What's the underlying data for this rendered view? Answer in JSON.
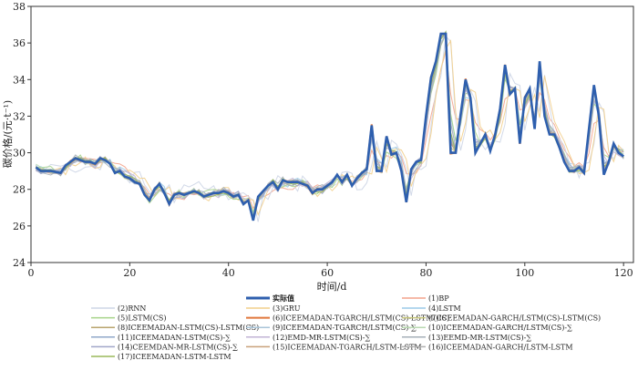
{
  "chart_data": {
    "type": "line",
    "title": "",
    "xlabel": "时间/d",
    "ylabel": "碳价格/(元·t⁻¹)",
    "xlim": [
      0,
      122
    ],
    "ylim": [
      24,
      38
    ],
    "xticks": [
      0,
      20,
      40,
      60,
      80,
      100,
      120
    ],
    "yticks": [
      24,
      26,
      28,
      30,
      32,
      34,
      36,
      38
    ],
    "grid": false,
    "legend_position": "bottom",
    "actual": {
      "name": "实际值",
      "color": "#2e5fae",
      "points": [
        [
          1,
          29.2
        ],
        [
          2,
          29.0
        ],
        [
          4,
          29.0
        ],
        [
          6,
          28.9
        ],
        [
          7,
          29.3
        ],
        [
          8,
          29.5
        ],
        [
          9,
          29.7
        ],
        [
          10,
          29.6
        ],
        [
          11,
          29.5
        ],
        [
          12,
          29.5
        ],
        [
          13,
          29.4
        ],
        [
          14,
          29.7
        ],
        [
          15,
          29.6
        ],
        [
          16,
          29.4
        ],
        [
          17,
          28.9
        ],
        [
          18,
          29.0
        ],
        [
          19,
          28.7
        ],
        [
          20,
          28.6
        ],
        [
          21,
          28.4
        ],
        [
          22,
          28.3
        ],
        [
          23,
          27.7
        ],
        [
          24,
          27.4
        ],
        [
          25,
          28.0
        ],
        [
          26,
          28.3
        ],
        [
          27,
          27.8
        ],
        [
          28,
          27.2
        ],
        [
          29,
          27.7
        ],
        [
          30,
          27.8
        ],
        [
          31,
          27.7
        ],
        [
          32,
          27.8
        ],
        [
          33,
          27.9
        ],
        [
          34,
          27.8
        ],
        [
          35,
          27.6
        ],
        [
          36,
          27.7
        ],
        [
          37,
          27.8
        ],
        [
          38,
          27.8
        ],
        [
          39,
          27.9
        ],
        [
          40,
          27.8
        ],
        [
          41,
          27.6
        ],
        [
          42,
          27.7
        ],
        [
          43,
          27.2
        ],
        [
          44,
          27.4
        ],
        [
          45,
          26.3
        ],
        [
          46,
          27.6
        ],
        [
          47,
          27.9
        ],
        [
          48,
          28.2
        ],
        [
          49,
          28.4
        ],
        [
          50,
          28.0
        ],
        [
          51,
          28.5
        ],
        [
          52,
          28.4
        ],
        [
          53,
          28.4
        ],
        [
          54,
          28.4
        ],
        [
          55,
          28.3
        ],
        [
          56,
          28.2
        ],
        [
          57,
          27.8
        ],
        [
          58,
          28.0
        ],
        [
          59,
          28.0
        ],
        [
          60,
          28.2
        ],
        [
          61,
          28.4
        ],
        [
          62,
          28.8
        ],
        [
          63,
          28.4
        ],
        [
          64,
          28.8
        ],
        [
          65,
          28.2
        ],
        [
          66,
          28.6
        ],
        [
          67,
          28.9
        ],
        [
          68,
          29.1
        ],
        [
          69,
          31.5
        ],
        [
          70,
          29.0
        ],
        [
          71,
          29.0
        ],
        [
          72,
          30.9
        ],
        [
          73,
          29.9
        ],
        [
          74,
          30.0
        ],
        [
          75,
          29.0
        ],
        [
          76,
          27.3
        ],
        [
          77,
          29.1
        ],
        [
          78,
          29.5
        ],
        [
          79,
          29.6
        ],
        [
          80,
          32.0
        ],
        [
          81,
          34.1
        ],
        [
          82,
          35.0
        ],
        [
          83,
          36.5
        ],
        [
          84,
          36.5
        ],
        [
          85,
          30.0
        ],
        [
          86,
          30.0
        ],
        [
          87,
          32.1
        ],
        [
          88,
          34.0
        ],
        [
          89,
          33.0
        ],
        [
          90,
          30.0
        ],
        [
          91,
          30.5
        ],
        [
          92,
          31.0
        ],
        [
          93,
          30.1
        ],
        [
          94,
          31.0
        ],
        [
          95,
          32.4
        ],
        [
          96,
          34.8
        ],
        [
          97,
          33.2
        ],
        [
          98,
          33.5
        ],
        [
          99,
          30.5
        ],
        [
          100,
          33.0
        ],
        [
          101,
          33.5
        ],
        [
          102,
          31.3
        ],
        [
          103,
          35.0
        ],
        [
          104,
          32.0
        ],
        [
          105,
          31.0
        ],
        [
          106,
          31.0
        ],
        [
          107,
          30.3
        ],
        [
          108,
          29.5
        ],
        [
          109,
          29.0
        ],
        [
          110,
          29.0
        ],
        [
          111,
          29.2
        ],
        [
          112,
          28.9
        ],
        [
          113,
          31.3
        ],
        [
          114,
          33.7
        ],
        [
          115,
          32.0
        ],
        [
          116,
          28.8
        ],
        [
          117,
          29.5
        ],
        [
          118,
          30.5
        ],
        [
          119,
          30.0
        ],
        [
          120,
          29.8
        ]
      ]
    },
    "series": [
      {
        "name": "(1)BP",
        "color": "#f4a48c",
        "style": "solid"
      },
      {
        "name": "(2)RNN",
        "color": "#cdd5e6",
        "style": "solid"
      },
      {
        "name": "(3)GRU",
        "color": "#f2cf8c",
        "style": "solid"
      },
      {
        "name": "(4)LSTM",
        "color": "#9ccae8",
        "style": "solid"
      },
      {
        "name": "(5)LSTM(CS)",
        "color": "#a7d48a",
        "style": "solid"
      },
      {
        "name": "(6)ICEEMADAN-TGARCH/LSTM(CS)-LSTM(CS)",
        "color": "#e0783c",
        "style": "solid"
      },
      {
        "name": "(7)ICEEMADAN-GARCH/LSTM(CS)-LSTM(CS)",
        "color": "#c5c57a",
        "style": "solid"
      },
      {
        "name": "(8)ICEEMADAN-LSTM(CS)-LSTM(CS)",
        "color": "#b8a46e",
        "style": "solid"
      },
      {
        "name": "(9)ICEEMADAN-TGARCH/LSTM(CS)-∑",
        "color": "#a9c4d8",
        "style": "solid"
      },
      {
        "name": "(10)ICEEMADAN-GARCH/LSTM(CS)-∑",
        "color": "#b8d8b0",
        "style": "solid"
      },
      {
        "name": "(11)ICEEMADAN-LSTM(CS)-∑",
        "color": "#8fa7c9",
        "style": "solid"
      },
      {
        "name": "(12)EMD-MR-LSTM(CS)-∑",
        "color": "#c1b3d4",
        "style": "solid"
      },
      {
        "name": "(13)EEMD-MR-LSTM(CS)-∑",
        "color": "#a6b0b8",
        "style": "solid"
      },
      {
        "name": "(14)CEEMDAN-MR-LSTM(CS)-∑",
        "color": "#a0a6c8",
        "style": "solid"
      },
      {
        "name": "(15)ICEEMADAN-TGARCH/LSTM-LSTM",
        "color": "#c9a07a",
        "style": "solid"
      },
      {
        "name": "(16)ICEEMADAN-GARCH/LSTM-LSTM",
        "color": "#b0b0b0",
        "style": "solid"
      },
      {
        "name": "(17)ICEEMADAN-LSTM-LSTM",
        "color": "#9ab85a",
        "style": "solid"
      }
    ]
  }
}
